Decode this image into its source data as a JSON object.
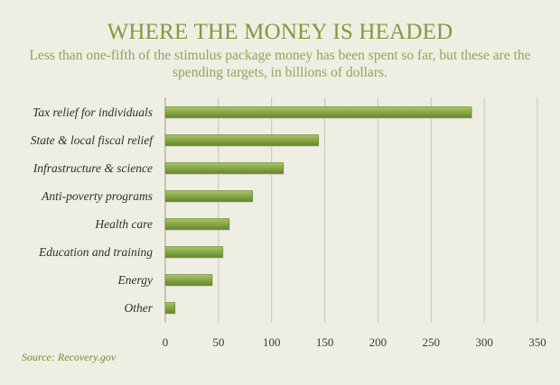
{
  "title": "WHERE THE MONEY IS HEADED",
  "subtitle": "Less than one-fifth of the  stimulus package money has been spent so far, but these are the spending targets, in billions of dollars.",
  "source": "Source: Recovery.gov",
  "colors": {
    "background": "#efeee3",
    "bar_fill": "#87a845",
    "bar_highlight": "#a7c266",
    "bar_shadow": "#5f7d2a",
    "gridline": "#c6c5b8",
    "title": "#7f9a3f"
  },
  "chart_data": {
    "type": "bar",
    "orientation": "horizontal",
    "categories": [
      "Tax relief for individuals",
      "State & local fiscal relief",
      "Infrastructure & science",
      "Anti-poverty programs",
      "Health care",
      "Education and training",
      "Energy",
      "Other"
    ],
    "values": [
      288,
      144,
      111,
      82,
      60,
      54,
      44,
      9
    ],
    "title": "WHERE THE MONEY IS HEADED",
    "xlabel": "",
    "ylabel": "",
    "xlim": [
      0,
      350
    ],
    "xticks": [
      0,
      50,
      100,
      150,
      200,
      250,
      300,
      350
    ],
    "xtick_labels": [
      "0",
      "50",
      "100",
      "150",
      "200",
      "250",
      "300",
      "350"
    ],
    "grid": true,
    "legend": "none"
  }
}
